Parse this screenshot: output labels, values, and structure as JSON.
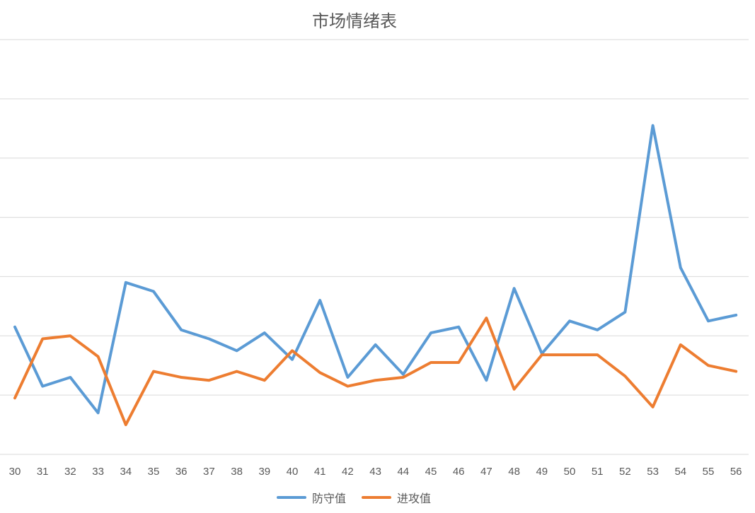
{
  "chart_data": {
    "type": "line",
    "title": "市场情绪表",
    "xlabel": "",
    "ylabel": "",
    "categories": [
      "30",
      "31",
      "32",
      "33",
      "34",
      "35",
      "36",
      "37",
      "38",
      "39",
      "40",
      "41",
      "42",
      "43",
      "44",
      "45",
      "46",
      "47",
      "48",
      "49",
      "50",
      "51",
      "52",
      "53",
      "54",
      "55",
      "56"
    ],
    "ylim": [
      0,
      7
    ],
    "grid": true,
    "legend": "bottom",
    "series": [
      {
        "name": "防守值",
        "color": "#5b9bd5",
        "values": [
          2.15,
          1.15,
          1.3,
          0.7,
          2.9,
          2.75,
          2.1,
          1.95,
          1.75,
          2.05,
          1.6,
          2.6,
          1.3,
          1.85,
          1.35,
          2.05,
          2.15,
          1.25,
          2.8,
          1.7,
          2.25,
          2.1,
          2.4,
          5.55,
          3.15,
          2.25,
          2.35
        ]
      },
      {
        "name": "进攻值",
        "color": "#ed7d31",
        "values": [
          0.95,
          1.95,
          2.0,
          1.65,
          0.5,
          1.4,
          1.3,
          1.25,
          1.4,
          1.25,
          1.75,
          1.38,
          1.15,
          1.25,
          1.3,
          1.55,
          1.55,
          2.3,
          1.1,
          1.68,
          1.68,
          1.68,
          1.32,
          0.8,
          1.85,
          1.5,
          1.4
        ]
      }
    ]
  }
}
